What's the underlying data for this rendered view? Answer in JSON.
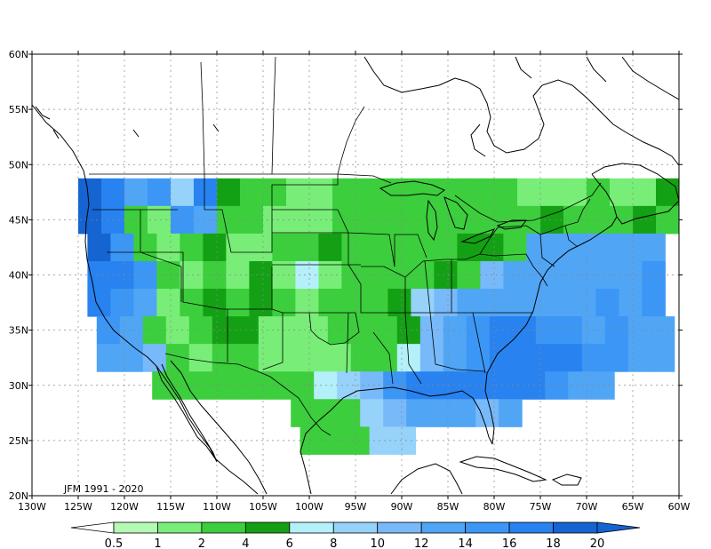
{
  "caption": "JFM 1991 - 2020",
  "lat_labels": [
    "60N",
    "55N",
    "50N",
    "45N",
    "40N",
    "35N",
    "30N",
    "25N",
    "20N"
  ],
  "lon_labels": [
    "130W",
    "125W",
    "120W",
    "115W",
    "110W",
    "105W",
    "100W",
    "95W",
    "90W",
    "85W",
    "80W",
    "75W",
    "70W",
    "65W",
    "60W"
  ],
  "colorbar": {
    "labels": [
      "0.5",
      "1",
      "2",
      "4",
      "6",
      "8",
      "10",
      "12",
      "14",
      "16",
      "18",
      "20"
    ],
    "colors": [
      "#ffffff",
      "#b4fab4",
      "#78ee78",
      "#3cce3c",
      "#14a014",
      "#b4f0fa",
      "#96d2fa",
      "#78b9fa",
      "#50a5f5",
      "#3c96f5",
      "#2882f0",
      "#1464d2"
    ]
  },
  "chart_data": {
    "type": "heatmap",
    "title": "",
    "xlabel": "",
    "ylabel": "",
    "xlim": [
      -130,
      -60
    ],
    "ylim": [
      20,
      60
    ],
    "grid": true,
    "legend": "bottom colorbar",
    "bins": [
      0.5,
      1,
      2,
      4,
      6,
      8,
      10,
      12,
      14,
      16,
      18,
      20
    ],
    "cell_size_deg": 2.5,
    "grid_origin": [
      -125,
      20
    ],
    "rows": [
      {
        "lat": 47.5,
        "cells": [
          11,
          10,
          8,
          9,
          6,
          10,
          4,
          3,
          3,
          2,
          2,
          3,
          3,
          3,
          3,
          3,
          3,
          3,
          3,
          2,
          2,
          2,
          3,
          2,
          2,
          4,
          7,
          7
        ]
      },
      {
        "lat": 45.0,
        "cells": [
          11,
          10,
          3,
          2,
          9,
          8,
          3,
          3,
          2,
          2,
          2,
          3,
          3,
          3,
          3,
          3,
          3,
          3,
          3,
          3,
          4,
          3,
          3,
          3,
          4,
          3,
          6,
          4,
          8,
          7,
          7,
          8,
          8,
          8,
          8,
          8,
          8,
          8,
          9,
          9,
          9,
          9,
          8,
          8
        ]
      },
      {
        "lat": 42.5,
        "cells": [
          11,
          9,
          3,
          2,
          3,
          4,
          2,
          2,
          3,
          3,
          4,
          3,
          3,
          3,
          3,
          3,
          4,
          4,
          3,
          8,
          8,
          8,
          8,
          8,
          8,
          8,
          9,
          8,
          8,
          9,
          9,
          9,
          10,
          10
        ]
      },
      {
        "lat": 40.0,
        "cells": [
          10,
          10,
          9,
          3,
          2,
          3,
          2,
          4,
          2,
          5,
          2,
          3,
          3,
          3,
          3,
          4,
          3,
          7,
          8,
          8,
          8,
          8,
          8,
          8,
          9,
          9,
          9,
          9,
          9,
          9
        ]
      },
      {
        "lat": 37.5,
        "cells": [
          10,
          9,
          8,
          2,
          3,
          4,
          3,
          4,
          3,
          2,
          3,
          3,
          3,
          4,
          6,
          7,
          8,
          8,
          8,
          8,
          8,
          8,
          9,
          8,
          9,
          8,
          8
        ]
      },
      {
        "lat": 35.0,
        "cells": [
          9,
          8,
          3,
          2,
          3,
          4,
          4,
          2,
          2,
          2,
          3,
          3,
          3,
          4,
          7,
          8,
          9,
          10,
          10,
          9,
          9,
          8,
          9,
          8,
          8,
          8
        ]
      },
      {
        "lat": 32.5,
        "cells": [
          8,
          8,
          7,
          3,
          2,
          3,
          3,
          2,
          2,
          2,
          2,
          3,
          3,
          5,
          7,
          8,
          9,
          10,
          10,
          10,
          10,
          9,
          9,
          8,
          8
        ]
      },
      {
        "lat": 30.0,
        "cells": [
          3,
          3,
          3,
          3,
          3,
          3,
          3,
          5,
          6,
          7,
          9,
          10,
          10,
          10,
          10,
          10,
          10,
          9,
          8,
          8
        ]
      },
      {
        "lat": 27.5,
        "cells": [
          3,
          3,
          3,
          6,
          7,
          8,
          8,
          8,
          7,
          8
        ]
      },
      {
        "lat": 25.0,
        "cells": [
          3,
          3,
          3,
          6,
          6
        ]
      }
    ]
  }
}
